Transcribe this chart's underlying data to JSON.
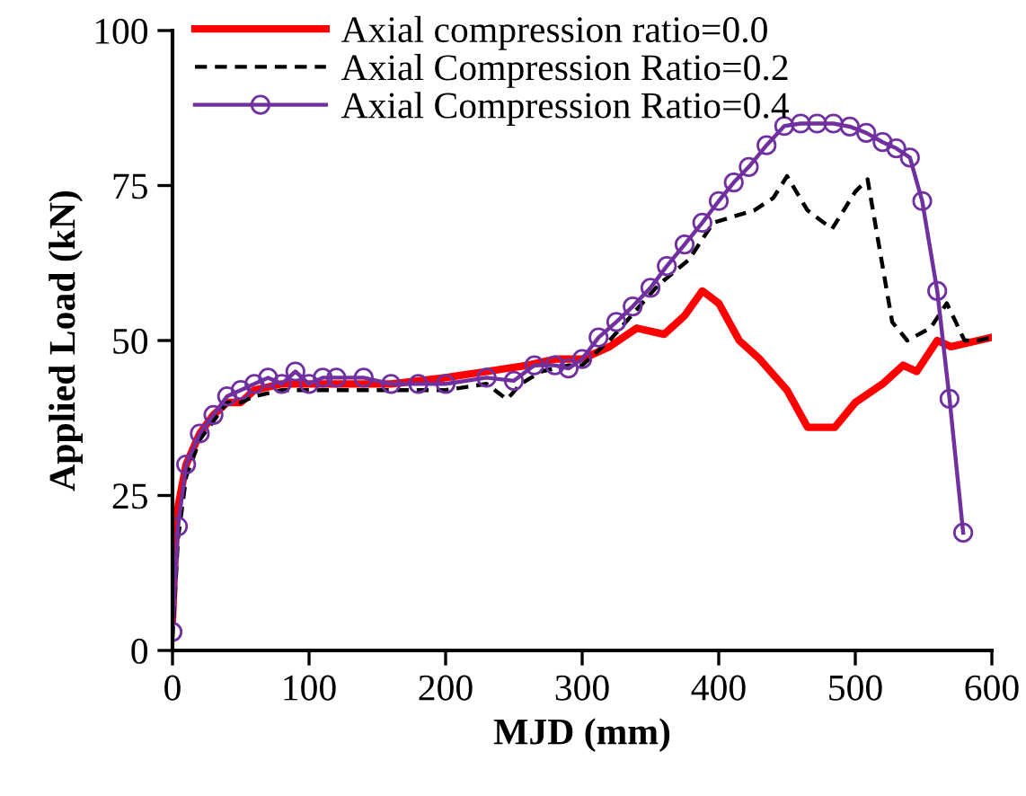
{
  "chart_data": {
    "type": "line",
    "xlabel": "MJD (mm)",
    "ylabel": "Applied Load (kN)",
    "xlim": [
      0,
      600
    ],
    "ylim": [
      0,
      100
    ],
    "xticks": [
      0,
      100,
      200,
      300,
      400,
      500,
      600
    ],
    "yticks": [
      0,
      25,
      50,
      75,
      100
    ],
    "grid": false,
    "legend": "top left",
    "series": [
      {
        "name": "Axial compression ratio=0.0",
        "color": "#ff0000",
        "line_style": "solid",
        "marker": "none",
        "x": [
          0,
          3,
          10,
          20,
          30,
          40,
          50,
          60,
          80,
          100,
          130,
          160,
          200,
          230,
          260,
          280,
          300,
          320,
          340,
          360,
          375,
          388,
          400,
          415,
          430,
          450,
          465,
          485,
          500,
          520,
          535,
          545,
          560,
          570,
          590,
          600
        ],
        "values": [
          5,
          22,
          30,
          35,
          38,
          40,
          40,
          42,
          43,
          43,
          43,
          43,
          44,
          45,
          46,
          47,
          47,
          49,
          52,
          51,
          54,
          58,
          56,
          50,
          47,
          42,
          36,
          36,
          40,
          43,
          46,
          45,
          50,
          49,
          50,
          50.5
        ]
      },
      {
        "name": "Axial Compression Ratio=0.2",
        "color": "#000000",
        "line_style": "dashed",
        "marker": "none",
        "x": [
          0,
          4,
          10,
          20,
          30,
          40,
          50,
          60,
          80,
          100,
          130,
          160,
          200,
          230,
          245,
          255,
          270,
          290,
          300,
          320,
          356,
          378,
          396,
          426,
          440,
          450,
          465,
          483,
          500,
          509,
          527,
          538,
          555,
          567,
          580,
          590,
          600
        ],
        "values": [
          2,
          18,
          28,
          34,
          37,
          40,
          40,
          41,
          42,
          42,
          42,
          42,
          42,
          43,
          40.5,
          43,
          45,
          46,
          46,
          50,
          59,
          63,
          69,
          71,
          73,
          76.5,
          71,
          68,
          74,
          76,
          53,
          50,
          52,
          56,
          50,
          50,
          50.5
        ]
      },
      {
        "name": "Axial Compression Ratio=0.4",
        "color": "#7030a0",
        "line_style": "solid",
        "marker": "circle",
        "x": [
          0,
          4,
          10,
          20,
          30,
          40,
          50,
          60,
          70,
          80,
          90,
          100,
          110,
          120,
          140,
          160,
          180,
          200,
          230,
          250,
          265,
          280,
          290,
          300,
          312,
          325,
          337,
          350,
          362,
          375,
          388,
          400,
          411,
          422,
          435,
          448,
          460,
          472,
          484,
          496,
          508,
          520,
          530,
          540,
          549,
          560,
          569,
          579
        ],
        "values": [
          3,
          20,
          30,
          35,
          38,
          41,
          42,
          43,
          44,
          43,
          45,
          43,
          44,
          44,
          44,
          43,
          43,
          43,
          44,
          43.5,
          46,
          46,
          45.5,
          47,
          50.5,
          53,
          55.5,
          58.5,
          62,
          65.5,
          69,
          72.5,
          75.5,
          78,
          81.5,
          84.6,
          85,
          85,
          85,
          84.5,
          83.5,
          82,
          81,
          79.5,
          72.5,
          58,
          40.6,
          19
        ]
      }
    ]
  }
}
